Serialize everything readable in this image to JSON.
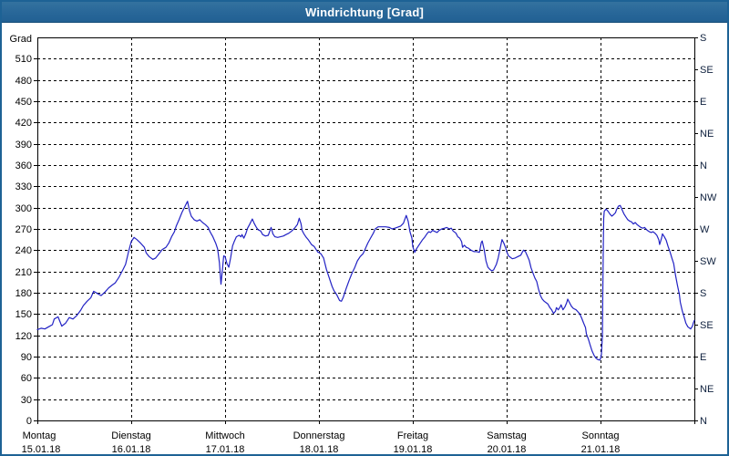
{
  "window": {
    "title": "Windrichtung [Grad]"
  },
  "colors": {
    "titlebar_blue": "#276698",
    "window_border": "#1d6295",
    "line_blue": "#2222c4",
    "grid_black": "#000000",
    "axis_text": "#000000",
    "compass_text": "#0d1f3c"
  },
  "chart_data": {
    "type": "line",
    "title": "Windrichtung [Grad]",
    "ylabel_unit": "Grad",
    "ylim": [
      0,
      540
    ],
    "y_tick_step": 30,
    "left_ticks": [
      510,
      480,
      450,
      420,
      390,
      360,
      330,
      300,
      270,
      240,
      210,
      180,
      150,
      120,
      90,
      60,
      30,
      0
    ],
    "right_ticks": [
      {
        "deg": 540,
        "label": "S"
      },
      {
        "deg": 495,
        "label": "SE"
      },
      {
        "deg": 450,
        "label": "E"
      },
      {
        "deg": 405,
        "label": "NE"
      },
      {
        "deg": 360,
        "label": "N"
      },
      {
        "deg": 315,
        "label": "NW"
      },
      {
        "deg": 270,
        "label": "W"
      },
      {
        "deg": 225,
        "label": "SW"
      },
      {
        "deg": 180,
        "label": "S"
      },
      {
        "deg": 135,
        "label": "SE"
      },
      {
        "deg": 90,
        "label": "E"
      },
      {
        "deg": 45,
        "label": "NE"
      },
      {
        "deg": 0,
        "label": "N"
      }
    ],
    "x_days": [
      {
        "weekday": "Montag",
        "date": "15.01.18"
      },
      {
        "weekday": "Dienstag",
        "date": "16.01.18"
      },
      {
        "weekday": "Mittwoch",
        "date": "17.01.18"
      },
      {
        "weekday": "Donnerstag",
        "date": "18.01.18"
      },
      {
        "weekday": "Freitag",
        "date": "19.01.18"
      },
      {
        "weekday": "Samstag",
        "date": "20.01.18"
      },
      {
        "weekday": "Sonntag",
        "date": "21.01.18"
      }
    ],
    "grid": true,
    "legend": "none",
    "series": [
      {
        "name": "Windrichtung",
        "points": [
          [
            0,
            128
          ],
          [
            0.04,
            130
          ],
          [
            0.08,
            129
          ],
          [
            0.12,
            132
          ],
          [
            0.16,
            135
          ],
          [
            0.18,
            143
          ],
          [
            0.22,
            146
          ],
          [
            0.26,
            133
          ],
          [
            0.3,
            137
          ],
          [
            0.34,
            145
          ],
          [
            0.38,
            143
          ],
          [
            0.42,
            148
          ],
          [
            0.46,
            155
          ],
          [
            0.49,
            162
          ],
          [
            0.53,
            168
          ],
          [
            0.57,
            173
          ],
          [
            0.6,
            182
          ],
          [
            0.64,
            179
          ],
          [
            0.68,
            176
          ],
          [
            0.72,
            181
          ],
          [
            0.76,
            187
          ],
          [
            0.8,
            191
          ],
          [
            0.83,
            194
          ],
          [
            0.87,
            202
          ],
          [
            0.91,
            212
          ],
          [
            0.94,
            220
          ],
          [
            0.97,
            237
          ],
          [
            1.0,
            252
          ],
          [
            1.03,
            258
          ],
          [
            1.06,
            255
          ],
          [
            1.1,
            250
          ],
          [
            1.14,
            244
          ],
          [
            1.16,
            236
          ],
          [
            1.19,
            231
          ],
          [
            1.23,
            227
          ],
          [
            1.26,
            229
          ],
          [
            1.29,
            234
          ],
          [
            1.33,
            241
          ],
          [
            1.37,
            244
          ],
          [
            1.4,
            250
          ],
          [
            1.43,
            259
          ],
          [
            1.46,
            266
          ],
          [
            1.48,
            274
          ],
          [
            1.51,
            283
          ],
          [
            1.54,
            293
          ],
          [
            1.57,
            301
          ],
          [
            1.6,
            309
          ],
          [
            1.62,
            296
          ],
          [
            1.64,
            288
          ],
          [
            1.67,
            283
          ],
          [
            1.7,
            281
          ],
          [
            1.73,
            283
          ],
          [
            1.76,
            279
          ],
          [
            1.79,
            276
          ],
          [
            1.82,
            272
          ],
          [
            1.84,
            266
          ],
          [
            1.87,
            259
          ],
          [
            1.9,
            250
          ],
          [
            1.92,
            242
          ],
          [
            1.94,
            222
          ],
          [
            1.956,
            192
          ],
          [
            1.97,
            210
          ],
          [
            1.985,
            232
          ],
          [
            2.0,
            231
          ],
          [
            2.02,
            221
          ],
          [
            2.04,
            216
          ],
          [
            2.06,
            230
          ],
          [
            2.08,
            246
          ],
          [
            2.1,
            253
          ],
          [
            2.12,
            259
          ],
          [
            2.15,
            261
          ],
          [
            2.17,
            259
          ],
          [
            2.18,
            262
          ],
          [
            2.2,
            257
          ],
          [
            2.22,
            263
          ],
          [
            2.24,
            271
          ],
          [
            2.26,
            276
          ],
          [
            2.29,
            284
          ],
          [
            2.31,
            278
          ],
          [
            2.33,
            273
          ],
          [
            2.35,
            269
          ],
          [
            2.38,
            267
          ],
          [
            2.4,
            262
          ],
          [
            2.43,
            260
          ],
          [
            2.46,
            261
          ],
          [
            2.48,
            268
          ],
          [
            2.49,
            272
          ],
          [
            2.51,
            263
          ],
          [
            2.53,
            259
          ],
          [
            2.56,
            258
          ],
          [
            2.59,
            259
          ],
          [
            2.62,
            260
          ],
          [
            2.65,
            262
          ],
          [
            2.68,
            264
          ],
          [
            2.71,
            267
          ],
          [
            2.74,
            271
          ],
          [
            2.77,
            276
          ],
          [
            2.79,
            285
          ],
          [
            2.81,
            277
          ],
          [
            2.82,
            268
          ],
          [
            2.84,
            263
          ],
          [
            2.86,
            259
          ],
          [
            2.89,
            254
          ],
          [
            2.92,
            248
          ],
          [
            2.95,
            245
          ],
          [
            2.97,
            241
          ],
          [
            2.99,
            237
          ],
          [
            3.0,
            237
          ],
          [
            3.02,
            235
          ],
          [
            3.05,
            229
          ],
          [
            3.08,
            213
          ],
          [
            3.11,
            201
          ],
          [
            3.14,
            189
          ],
          [
            3.16,
            183
          ],
          [
            3.19,
            177
          ],
          [
            3.22,
            169
          ],
          [
            3.24,
            168
          ],
          [
            3.26,
            174
          ],
          [
            3.29,
            186
          ],
          [
            3.32,
            197
          ],
          [
            3.35,
            207
          ],
          [
            3.38,
            215
          ],
          [
            3.41,
            225
          ],
          [
            3.44,
            231
          ],
          [
            3.47,
            235
          ],
          [
            3.49,
            241
          ],
          [
            3.52,
            250
          ],
          [
            3.55,
            257
          ],
          [
            3.58,
            264
          ],
          [
            3.6,
            270
          ],
          [
            3.63,
            273
          ],
          [
            3.67,
            273
          ],
          [
            3.71,
            273
          ],
          [
            3.75,
            272
          ],
          [
            3.78,
            270
          ],
          [
            3.81,
            271
          ],
          [
            3.83,
            272
          ],
          [
            3.87,
            274
          ],
          [
            3.9,
            278
          ],
          [
            3.93,
            289
          ],
          [
            3.95,
            281
          ],
          [
            3.97,
            266
          ],
          [
            3.99,
            257
          ],
          [
            4.0,
            245
          ],
          [
            4.02,
            237
          ],
          [
            4.04,
            242
          ],
          [
            4.07,
            248
          ],
          [
            4.1,
            254
          ],
          [
            4.13,
            259
          ],
          [
            4.15,
            263
          ],
          [
            4.17,
            266
          ],
          [
            4.19,
            265
          ],
          [
            4.21,
            268
          ],
          [
            4.24,
            266
          ],
          [
            4.26,
            265
          ],
          [
            4.28,
            268
          ],
          [
            4.31,
            270
          ],
          [
            4.34,
            271
          ],
          [
            4.36,
            272
          ],
          [
            4.39,
            270
          ],
          [
            4.41,
            271
          ],
          [
            4.43,
            267
          ],
          [
            4.46,
            264
          ],
          [
            4.48,
            259
          ],
          [
            4.5,
            257
          ],
          [
            4.52,
            252
          ],
          [
            4.53,
            244
          ],
          [
            4.55,
            247
          ],
          [
            4.57,
            244
          ],
          [
            4.59,
            243
          ],
          [
            4.62,
            240
          ],
          [
            4.65,
            238
          ],
          [
            4.68,
            238
          ],
          [
            4.71,
            237
          ],
          [
            4.73,
            251
          ],
          [
            4.74,
            253
          ],
          [
            4.76,
            241
          ],
          [
            4.78,
            225
          ],
          [
            4.8,
            216
          ],
          [
            4.82,
            213
          ],
          [
            4.84,
            211
          ],
          [
            4.86,
            212
          ],
          [
            4.89,
            220
          ],
          [
            4.91,
            229
          ],
          [
            4.93,
            242
          ],
          [
            4.95,
            255
          ],
          [
            4.97,
            250
          ],
          [
            4.99,
            243
          ],
          [
            5.0,
            238
          ],
          [
            5.02,
            232
          ],
          [
            5.06,
            228
          ],
          [
            5.09,
            229
          ],
          [
            5.12,
            231
          ],
          [
            5.15,
            233
          ],
          [
            5.17,
            238
          ],
          [
            5.18,
            240
          ],
          [
            5.2,
            238
          ],
          [
            5.22,
            232
          ],
          [
            5.24,
            226
          ],
          [
            5.26,
            215
          ],
          [
            5.28,
            208
          ],
          [
            5.3,
            201
          ],
          [
            5.32,
            196
          ],
          [
            5.34,
            185
          ],
          [
            5.36,
            176
          ],
          [
            5.38,
            171
          ],
          [
            5.4,
            168
          ],
          [
            5.42,
            166
          ],
          [
            5.44,
            164
          ],
          [
            5.46,
            159
          ],
          [
            5.48,
            156
          ],
          [
            5.49,
            153
          ],
          [
            5.5,
            151
          ],
          [
            5.52,
            154
          ],
          [
            5.53,
            159
          ],
          [
            5.55,
            156
          ],
          [
            5.57,
            160
          ],
          [
            5.58,
            163
          ],
          [
            5.6,
            156
          ],
          [
            5.62,
            160
          ],
          [
            5.64,
            166
          ],
          [
            5.65,
            171
          ],
          [
            5.67,
            166
          ],
          [
            5.69,
            161
          ],
          [
            5.71,
            158
          ],
          [
            5.74,
            156
          ],
          [
            5.76,
            153
          ],
          [
            5.78,
            150
          ],
          [
            5.8,
            144
          ],
          [
            5.82,
            137
          ],
          [
            5.84,
            131
          ],
          [
            5.85,
            122
          ],
          [
            5.87,
            115
          ],
          [
            5.89,
            106
          ],
          [
            5.91,
            98
          ],
          [
            5.93,
            92
          ],
          [
            5.95,
            88
          ],
          [
            5.97,
            86
          ],
          [
            5.99,
            85
          ],
          [
            6.0,
            87
          ],
          [
            6.01,
            93
          ],
          [
            6.02,
            120
          ],
          [
            6.024,
            180
          ],
          [
            6.03,
            250
          ],
          [
            6.034,
            285
          ],
          [
            6.04,
            295
          ],
          [
            6.06,
            298
          ],
          [
            6.08,
            295
          ],
          [
            6.1,
            291
          ],
          [
            6.12,
            288
          ],
          [
            6.14,
            290
          ],
          [
            6.16,
            293
          ],
          [
            6.17,
            297
          ],
          [
            6.19,
            302
          ],
          [
            6.21,
            303
          ],
          [
            6.23,
            297
          ],
          [
            6.25,
            291
          ],
          [
            6.27,
            287
          ],
          [
            6.29,
            283
          ],
          [
            6.31,
            281
          ],
          [
            6.33,
            280
          ],
          [
            6.35,
            277
          ],
          [
            6.37,
            279
          ],
          [
            6.39,
            276
          ],
          [
            6.41,
            274
          ],
          [
            6.43,
            272
          ],
          [
            6.45,
            271
          ],
          [
            6.47,
            272
          ],
          [
            6.49,
            269
          ],
          [
            6.5,
            268
          ],
          [
            6.52,
            266
          ],
          [
            6.54,
            265
          ],
          [
            6.56,
            266
          ],
          [
            6.58,
            264
          ],
          [
            6.6,
            261
          ],
          [
            6.62,
            255
          ],
          [
            6.63,
            248
          ],
          [
            6.65,
            257
          ],
          [
            6.66,
            263
          ],
          [
            6.68,
            259
          ],
          [
            6.7,
            254
          ],
          [
            6.72,
            245
          ],
          [
            6.74,
            238
          ],
          [
            6.76,
            229
          ],
          [
            6.78,
            221
          ],
          [
            6.8,
            204
          ],
          [
            6.82,
            190
          ],
          [
            6.84,
            178
          ],
          [
            6.85,
            167
          ],
          [
            6.87,
            155
          ],
          [
            6.89,
            146
          ],
          [
            6.91,
            137
          ],
          [
            6.93,
            132
          ],
          [
            6.95,
            130
          ],
          [
            6.96,
            129
          ],
          [
            6.98,
            133
          ],
          [
            6.99,
            138
          ],
          [
            7.0,
            141
          ]
        ]
      }
    ]
  }
}
